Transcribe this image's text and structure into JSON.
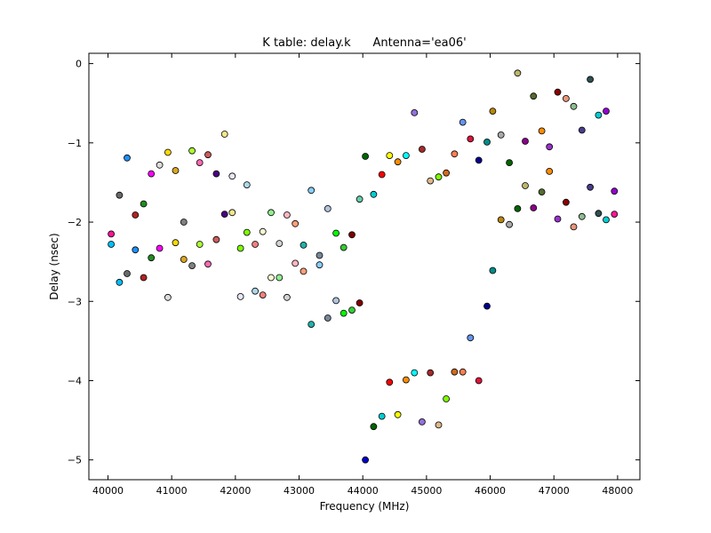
{
  "chart_data": {
    "type": "scatter",
    "title": "K table: delay.k      Antenna='ea06'",
    "xlabel": "Frequency (MHz)",
    "ylabel": "Delay (nsec)",
    "xlim": [
      39700,
      48350
    ],
    "ylim": [
      -5.25,
      0.13
    ],
    "xticks": [
      40000,
      41000,
      42000,
      43000,
      44000,
      45000,
      46000,
      47000,
      48000
    ],
    "yticks": [
      0,
      -1,
      -2,
      -3,
      -4,
      -5
    ],
    "grid": false,
    "legend": "none",
    "points": [
      {
        "x": 40050,
        "y": -2.15,
        "color": "#ff1493"
      },
      {
        "x": 40050,
        "y": -2.28,
        "color": "#00bfff"
      },
      {
        "x": 40180,
        "y": -1.66,
        "color": "#696969"
      },
      {
        "x": 40180,
        "y": -2.76,
        "color": "#00bfff"
      },
      {
        "x": 40300,
        "y": -1.19,
        "color": "#1e90ff"
      },
      {
        "x": 40300,
        "y": -2.65,
        "color": "#696969"
      },
      {
        "x": 40430,
        "y": -1.91,
        "color": "#b22222"
      },
      {
        "x": 40430,
        "y": -2.35,
        "color": "#1e90ff"
      },
      {
        "x": 40560,
        "y": -1.77,
        "color": "#228b22"
      },
      {
        "x": 40560,
        "y": -2.7,
        "color": "#b22222"
      },
      {
        "x": 40680,
        "y": -1.39,
        "color": "#ff00ff"
      },
      {
        "x": 40680,
        "y": -2.45,
        "color": "#228b22"
      },
      {
        "x": 40810,
        "y": -1.28,
        "color": "#dcdcdc"
      },
      {
        "x": 40810,
        "y": -2.33,
        "color": "#ff00ff"
      },
      {
        "x": 40940,
        "y": -1.12,
        "color": "#ffd700"
      },
      {
        "x": 40940,
        "y": -2.95,
        "color": "#dcdcdc"
      },
      {
        "x": 41060,
        "y": -1.35,
        "color": "#daa520"
      },
      {
        "x": 41060,
        "y": -2.26,
        "color": "#ffd700"
      },
      {
        "x": 41190,
        "y": -2.0,
        "color": "#808080"
      },
      {
        "x": 41190,
        "y": -2.47,
        "color": "#daa520"
      },
      {
        "x": 41320,
        "y": -1.1,
        "color": "#adff2f"
      },
      {
        "x": 41320,
        "y": -2.55,
        "color": "#808080"
      },
      {
        "x": 41440,
        "y": -1.25,
        "color": "#ff69b4"
      },
      {
        "x": 41440,
        "y": -2.28,
        "color": "#adff2f"
      },
      {
        "x": 41570,
        "y": -1.15,
        "color": "#cd5c5c"
      },
      {
        "x": 41570,
        "y": -2.53,
        "color": "#ff69b4"
      },
      {
        "x": 41700,
        "y": -1.39,
        "color": "#4b0082"
      },
      {
        "x": 41700,
        "y": -2.22,
        "color": "#cd5c5c"
      },
      {
        "x": 41830,
        "y": -0.89,
        "color": "#f0e68c"
      },
      {
        "x": 41830,
        "y": -1.9,
        "color": "#4b0082"
      },
      {
        "x": 41950,
        "y": -1.42,
        "color": "#e6e6fa"
      },
      {
        "x": 41950,
        "y": -1.88,
        "color": "#f0e68c"
      },
      {
        "x": 42080,
        "y": -2.33,
        "color": "#7cfc00"
      },
      {
        "x": 42080,
        "y": -2.94,
        "color": "#e6e6fa"
      },
      {
        "x": 42180,
        "y": -1.53,
        "color": "#add8e6"
      },
      {
        "x": 42180,
        "y": -2.13,
        "color": "#7cfc00"
      },
      {
        "x": 42310,
        "y": -2.28,
        "color": "#f08080"
      },
      {
        "x": 42310,
        "y": -2.87,
        "color": "#add8e6"
      },
      {
        "x": 42430,
        "y": -2.12,
        "color": "#fafad2"
      },
      {
        "x": 42430,
        "y": -2.92,
        "color": "#f08080"
      },
      {
        "x": 42560,
        "y": -1.88,
        "color": "#90ee90"
      },
      {
        "x": 42560,
        "y": -2.7,
        "color": "#fafad2"
      },
      {
        "x": 42690,
        "y": -2.27,
        "color": "#d3d3d3"
      },
      {
        "x": 42690,
        "y": -2.7,
        "color": "#90ee90"
      },
      {
        "x": 42810,
        "y": -1.91,
        "color": "#ffb6c1"
      },
      {
        "x": 42810,
        "y": -2.95,
        "color": "#d3d3d3"
      },
      {
        "x": 42940,
        "y": -2.02,
        "color": "#ffa07a"
      },
      {
        "x": 42940,
        "y": -2.52,
        "color": "#ffb6c1"
      },
      {
        "x": 43070,
        "y": -2.29,
        "color": "#20b2aa"
      },
      {
        "x": 43070,
        "y": -2.62,
        "color": "#ffa07a"
      },
      {
        "x": 43190,
        "y": -1.6,
        "color": "#87cefa"
      },
      {
        "x": 43190,
        "y": -3.29,
        "color": "#20b2aa"
      },
      {
        "x": 43320,
        "y": -2.42,
        "color": "#778899"
      },
      {
        "x": 43320,
        "y": -2.54,
        "color": "#87cefa"
      },
      {
        "x": 43450,
        "y": -1.83,
        "color": "#b0c4de"
      },
      {
        "x": 43450,
        "y": -3.21,
        "color": "#778899"
      },
      {
        "x": 43580,
        "y": -2.14,
        "color": "#00ff00"
      },
      {
        "x": 43580,
        "y": -2.99,
        "color": "#b0c4de"
      },
      {
        "x": 43700,
        "y": -2.32,
        "color": "#32cd32"
      },
      {
        "x": 43700,
        "y": -3.15,
        "color": "#00ff00"
      },
      {
        "x": 43830,
        "y": -2.16,
        "color": "#800000"
      },
      {
        "x": 43830,
        "y": -3.11,
        "color": "#32cd32"
      },
      {
        "x": 43950,
        "y": -1.71,
        "color": "#66cdaa"
      },
      {
        "x": 43950,
        "y": -3.02,
        "color": "#800000"
      },
      {
        "x": 44040,
        "y": -1.17,
        "color": "#006400"
      },
      {
        "x": 44040,
        "y": -5.0,
        "color": "#0000cd"
      },
      {
        "x": 44170,
        "y": -1.65,
        "color": "#00ced1"
      },
      {
        "x": 44170,
        "y": -4.58,
        "color": "#006400"
      },
      {
        "x": 44300,
        "y": -1.4,
        "color": "#ff0000"
      },
      {
        "x": 44300,
        "y": -4.45,
        "color": "#00ced1"
      },
      {
        "x": 44420,
        "y": -1.16,
        "color": "#ffff00"
      },
      {
        "x": 44420,
        "y": -4.02,
        "color": "#ff0000"
      },
      {
        "x": 44550,
        "y": -1.24,
        "color": "#ff8c00"
      },
      {
        "x": 44550,
        "y": -4.43,
        "color": "#ffff00"
      },
      {
        "x": 44680,
        "y": -1.16,
        "color": "#00ffff"
      },
      {
        "x": 44680,
        "y": -3.99,
        "color": "#ff8c00"
      },
      {
        "x": 44810,
        "y": -0.62,
        "color": "#9370db"
      },
      {
        "x": 44810,
        "y": -3.9,
        "color": "#00ffff"
      },
      {
        "x": 44930,
        "y": -1.08,
        "color": "#a52a2a"
      },
      {
        "x": 44930,
        "y": -4.52,
        "color": "#9370db"
      },
      {
        "x": 45060,
        "y": -1.48,
        "color": "#deb887"
      },
      {
        "x": 45060,
        "y": -3.9,
        "color": "#a52a2a"
      },
      {
        "x": 45190,
        "y": -1.43,
        "color": "#7fff00"
      },
      {
        "x": 45190,
        "y": -4.56,
        "color": "#deb887"
      },
      {
        "x": 45310,
        "y": -1.38,
        "color": "#d2691e"
      },
      {
        "x": 45310,
        "y": -4.23,
        "color": "#7fff00"
      },
      {
        "x": 45440,
        "y": -1.14,
        "color": "#ff7f50"
      },
      {
        "x": 45440,
        "y": -3.89,
        "color": "#d2691e"
      },
      {
        "x": 45570,
        "y": -0.74,
        "color": "#6495ed"
      },
      {
        "x": 45570,
        "y": -3.89,
        "color": "#ff7f50"
      },
      {
        "x": 45690,
        "y": -0.95,
        "color": "#dc143c"
      },
      {
        "x": 45690,
        "y": -3.46,
        "color": "#6495ed"
      },
      {
        "x": 45820,
        "y": -1.22,
        "color": "#00008b"
      },
      {
        "x": 45820,
        "y": -4.0,
        "color": "#dc143c"
      },
      {
        "x": 45950,
        "y": -0.99,
        "color": "#008b8b"
      },
      {
        "x": 45950,
        "y": -3.06,
        "color": "#00008b"
      },
      {
        "x": 46040,
        "y": -0.6,
        "color": "#b8860b"
      },
      {
        "x": 46040,
        "y": -2.61,
        "color": "#008b8b"
      },
      {
        "x": 46170,
        "y": -0.9,
        "color": "#a9a9a9"
      },
      {
        "x": 46170,
        "y": -1.97,
        "color": "#b8860b"
      },
      {
        "x": 46300,
        "y": -1.25,
        "color": "#006400"
      },
      {
        "x": 46300,
        "y": -2.03,
        "color": "#a9a9a9"
      },
      {
        "x": 46430,
        "y": -0.12,
        "color": "#bdb76b"
      },
      {
        "x": 46430,
        "y": -1.83,
        "color": "#006400"
      },
      {
        "x": 46550,
        "y": -0.98,
        "color": "#8b008b"
      },
      {
        "x": 46550,
        "y": -1.54,
        "color": "#bdb76b"
      },
      {
        "x": 46680,
        "y": -0.41,
        "color": "#556b2f"
      },
      {
        "x": 46680,
        "y": -1.82,
        "color": "#8b008b"
      },
      {
        "x": 46810,
        "y": -0.85,
        "color": "#ff8c00"
      },
      {
        "x": 46810,
        "y": -1.62,
        "color": "#556b2f"
      },
      {
        "x": 46930,
        "y": -1.05,
        "color": "#9932cc"
      },
      {
        "x": 46930,
        "y": -1.36,
        "color": "#ff8c00"
      },
      {
        "x": 47060,
        "y": -0.36,
        "color": "#8b0000"
      },
      {
        "x": 47060,
        "y": -1.96,
        "color": "#9932cc"
      },
      {
        "x": 47190,
        "y": -0.44,
        "color": "#e9967a"
      },
      {
        "x": 47190,
        "y": -1.75,
        "color": "#8b0000"
      },
      {
        "x": 47310,
        "y": -0.54,
        "color": "#8fbc8f"
      },
      {
        "x": 47310,
        "y": -2.06,
        "color": "#e9967a"
      },
      {
        "x": 47440,
        "y": -0.84,
        "color": "#483d8b"
      },
      {
        "x": 47440,
        "y": -1.93,
        "color": "#8fbc8f"
      },
      {
        "x": 47570,
        "y": -0.2,
        "color": "#2f4f4f"
      },
      {
        "x": 47570,
        "y": -1.56,
        "color": "#483d8b"
      },
      {
        "x": 47700,
        "y": -0.65,
        "color": "#00ced1"
      },
      {
        "x": 47700,
        "y": -1.89,
        "color": "#2f4f4f"
      },
      {
        "x": 47820,
        "y": -0.6,
        "color": "#9400d3"
      },
      {
        "x": 47820,
        "y": -1.97,
        "color": "#00ced1"
      },
      {
        "x": 47950,
        "y": -1.61,
        "color": "#9400d3"
      },
      {
        "x": 47950,
        "y": -1.9,
        "color": "#ff1493"
      }
    ]
  }
}
